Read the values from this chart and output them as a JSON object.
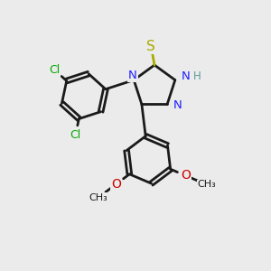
{
  "background_color": "#ebebeb",
  "bond_color": "#1a1a1a",
  "N_color": "#2020ff",
  "S_color": "#aaaa00",
  "O_color": "#cc0000",
  "Cl_color": "#00aa00",
  "H_color": "#5a9a9a",
  "line_width": 2.0,
  "figsize": [
    3.0,
    3.0
  ],
  "dpi": 100,
  "xlim": [
    0,
    10
  ],
  "ylim": [
    0,
    10
  ]
}
